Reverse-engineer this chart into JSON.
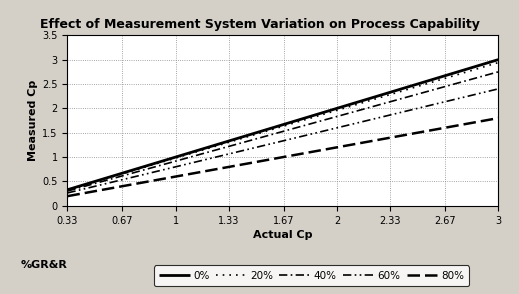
{
  "title": "Effect of Measurement System Variation on Process Capability",
  "xlabel": "Actual Cp",
  "ylabel": "Measured Cp",
  "grr_label": "%GR&R",
  "x_ticks": [
    0.33,
    0.67,
    1,
    1.33,
    1.67,
    2,
    2.33,
    2.67,
    3
  ],
  "x_tick_labels": [
    "0.33",
    "0.67",
    "1",
    "1.33",
    "1.67",
    "2",
    "2.33",
    "2.67",
    "3"
  ],
  "xlim": [
    0.33,
    3.0
  ],
  "ylim": [
    0,
    3.5
  ],
  "y_ticks": [
    0,
    0.5,
    1,
    1.5,
    2,
    2.5,
    3,
    3.5
  ],
  "y_tick_labels": [
    "0",
    "0.5",
    "1",
    "1.5",
    "2",
    "2.5",
    "3",
    "3.5"
  ],
  "grr_values": [
    0,
    0.2,
    0.4,
    0.6,
    0.8
  ],
  "grr_labels": [
    "0%",
    "20%",
    "40%",
    "60%",
    "80%"
  ],
  "line_widths": [
    2.0,
    1.2,
    1.2,
    1.2,
    1.8
  ],
  "background_color": "#d4d0c8",
  "plot_bg_color": "#ffffff",
  "grid_color": "#888888",
  "title_fontsize": 9,
  "axis_label_fontsize": 8,
  "tick_fontsize": 7,
  "legend_fontsize": 7.5
}
